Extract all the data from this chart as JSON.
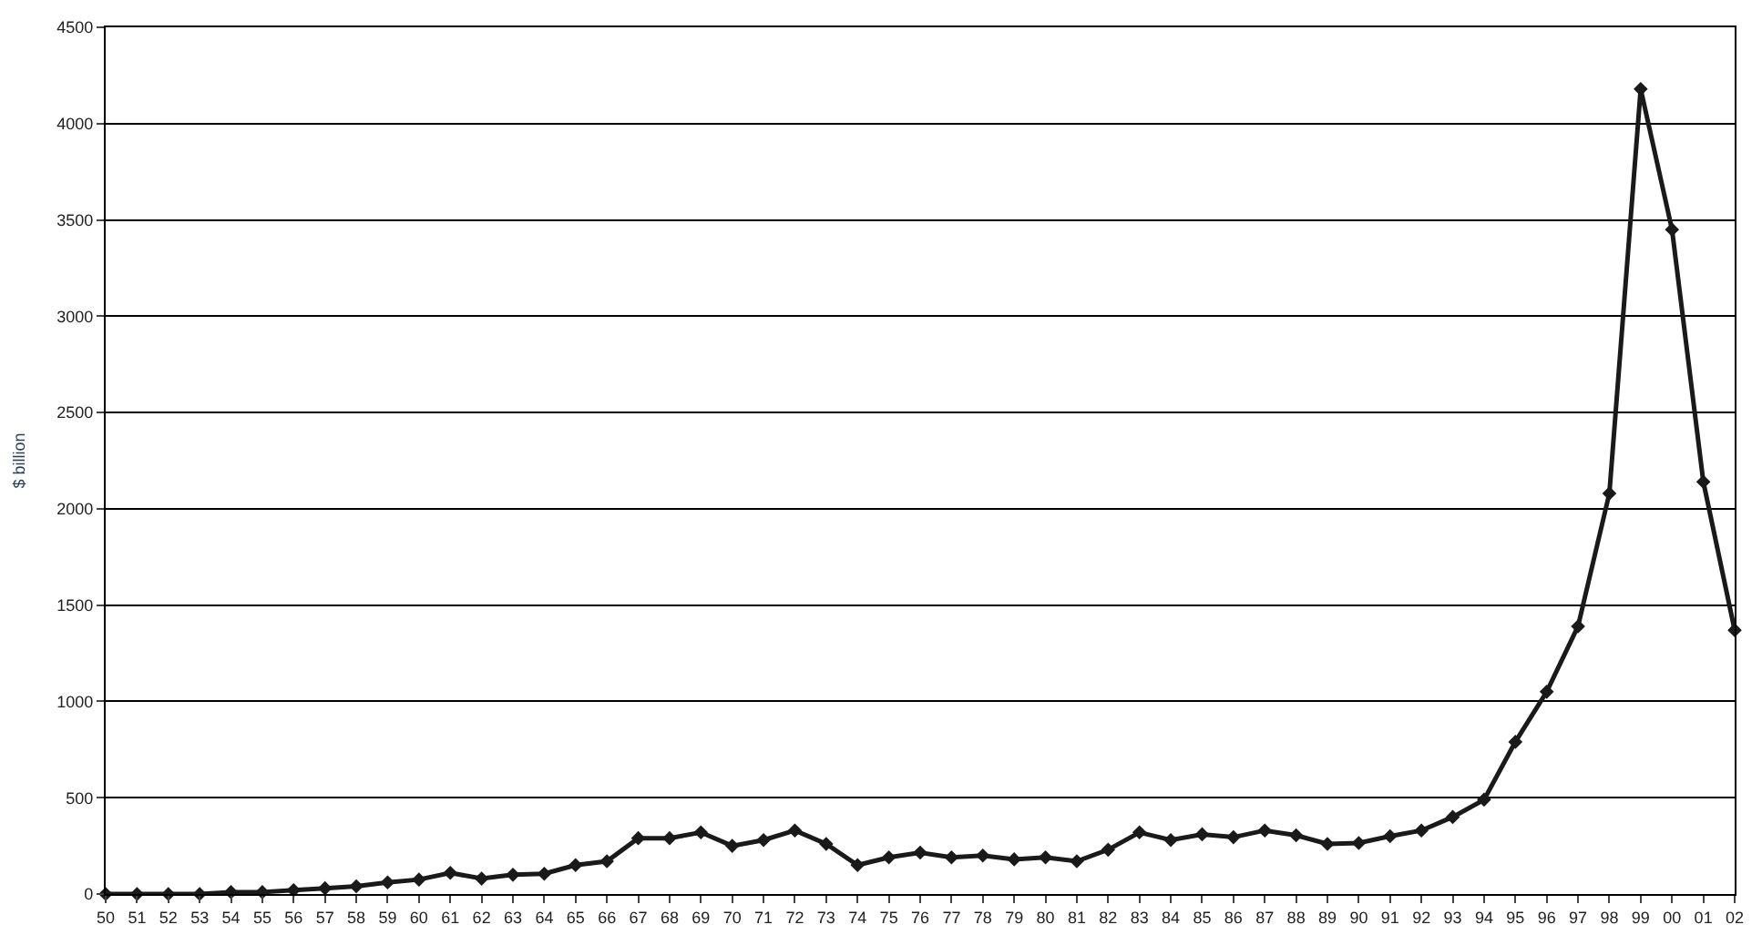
{
  "chart_data": {
    "type": "line",
    "ylabel": "$ billion",
    "categories": [
      "50",
      "51",
      "52",
      "53",
      "54",
      "55",
      "56",
      "57",
      "58",
      "59",
      "60",
      "61",
      "62",
      "63",
      "64",
      "65",
      "66",
      "67",
      "68",
      "69",
      "70",
      "71",
      "72",
      "73",
      "74",
      "75",
      "76",
      "77",
      "78",
      "79",
      "80",
      "81",
      "82",
      "83",
      "84",
      "85",
      "86",
      "87",
      "88",
      "89",
      "90",
      "91",
      "92",
      "93",
      "94",
      "95",
      "96",
      "97",
      "98",
      "99",
      "00",
      "01",
      "02"
    ],
    "series": [
      {
        "color": "#1a1a1a",
        "values": [
          0,
          0,
          0,
          0,
          10,
          10,
          20,
          30,
          40,
          60,
          75,
          110,
          80,
          100,
          105,
          150,
          170,
          290,
          290,
          320,
          250,
          280,
          330,
          260,
          150,
          190,
          215,
          190,
          200,
          180,
          190,
          170,
          230,
          320,
          280,
          310,
          295,
          330,
          305,
          260,
          265,
          300,
          330,
          400,
          490,
          790,
          1050,
          1390,
          2080,
          4180,
          3450,
          2140,
          1370
        ]
      }
    ],
    "ylim": [
      0,
      4500
    ],
    "yticks": [
      0,
      500,
      1000,
      1500,
      2000,
      2500,
      3000,
      3500,
      4000,
      4500
    ],
    "grid": "y",
    "marker": "diamond",
    "line_style": "solid",
    "legend": false
  }
}
